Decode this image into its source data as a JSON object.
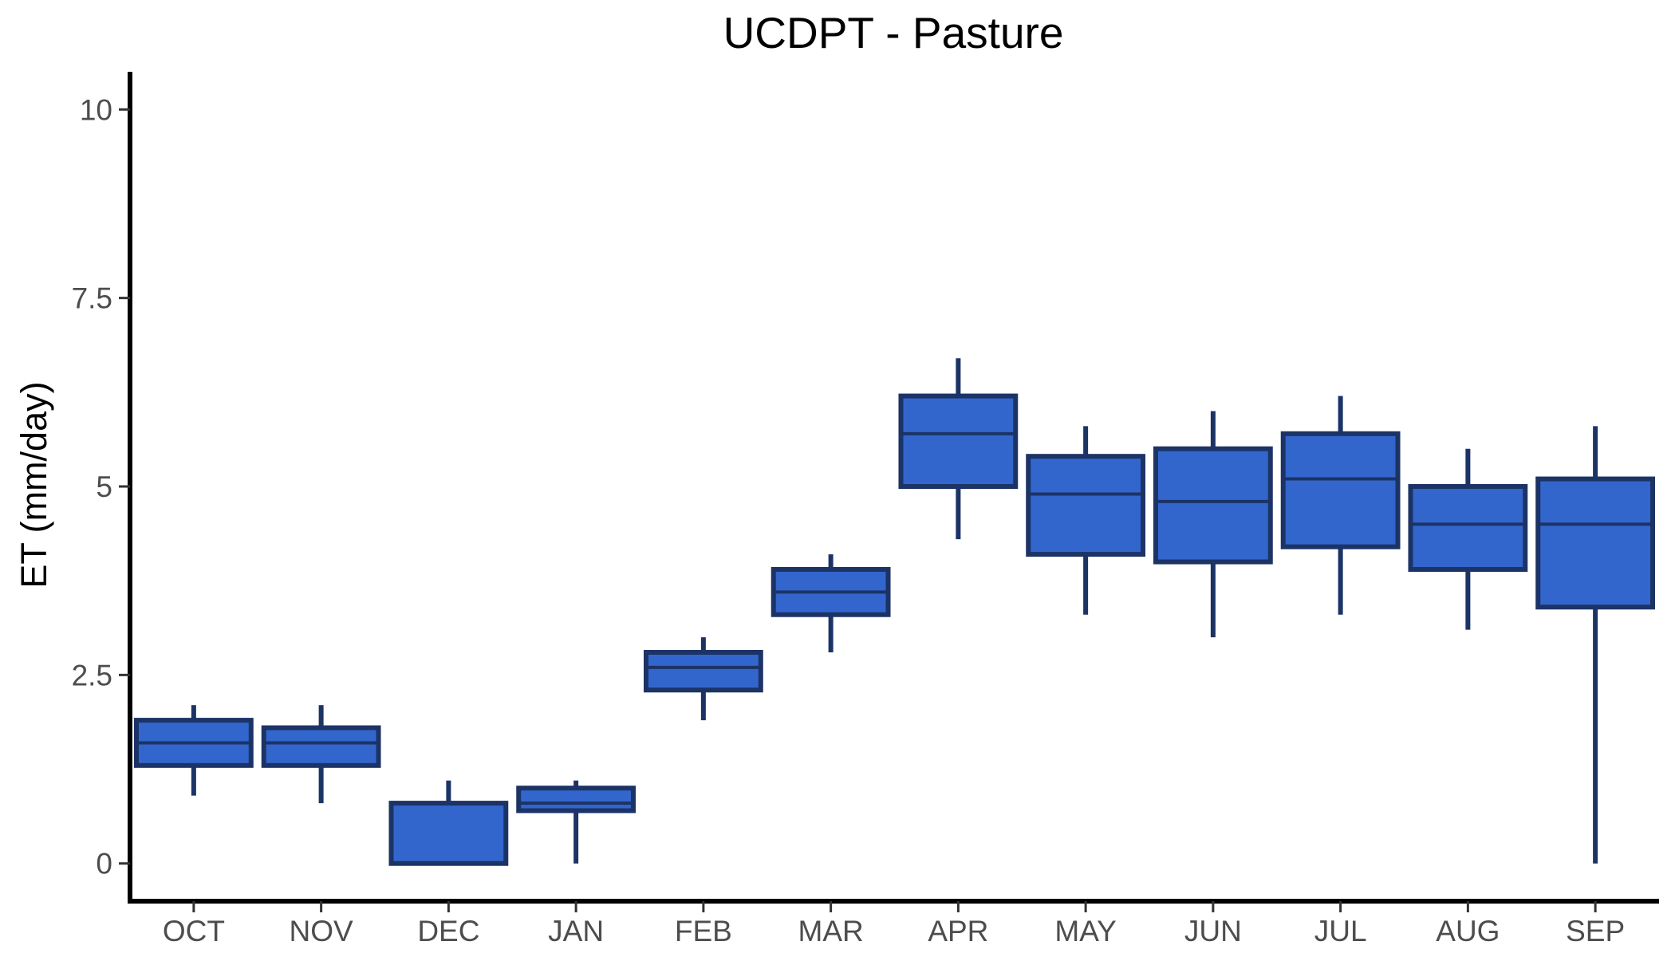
{
  "chart_data": {
    "type": "boxplot",
    "title": "UCDPT - Pasture",
    "xlabel": "",
    "ylabel": "ET (mm/day)",
    "ylim": [
      -0.5,
      10.5
    ],
    "yticks": [
      0,
      2.5,
      5,
      7.5,
      10
    ],
    "ytick_labels": [
      "0",
      "2.5",
      "5",
      "7.5",
      "10"
    ],
    "grid": false,
    "legend": "none",
    "colors": {
      "box_fill": "#3366CC",
      "box_stroke": "#1C3366",
      "axis": "#000000",
      "tick_text": "#4d4d4d"
    },
    "categories": [
      "OCT",
      "NOV",
      "DEC",
      "JAN",
      "FEB",
      "MAR",
      "APR",
      "MAY",
      "JUN",
      "JUL",
      "AUG",
      "SEP"
    ],
    "boxes": [
      {
        "category": "OCT",
        "min": 0.9,
        "q1": 1.3,
        "median": 1.6,
        "q3": 1.9,
        "max": 2.1
      },
      {
        "category": "NOV",
        "min": 0.8,
        "q1": 1.3,
        "median": 1.6,
        "q3": 1.8,
        "max": 2.1
      },
      {
        "category": "DEC",
        "min": 0.0,
        "q1": 0.0,
        "median": 0.8,
        "q3": 0.8,
        "max": 1.1
      },
      {
        "category": "JAN",
        "min": 0.0,
        "q1": 0.7,
        "median": 0.8,
        "q3": 1.0,
        "max": 1.1
      },
      {
        "category": "FEB",
        "min": 1.9,
        "q1": 2.3,
        "median": 2.6,
        "q3": 2.8,
        "max": 3.0
      },
      {
        "category": "MAR",
        "min": 2.8,
        "q1": 3.3,
        "median": 3.6,
        "q3": 3.9,
        "max": 4.1
      },
      {
        "category": "APR",
        "min": 4.3,
        "q1": 5.0,
        "median": 5.7,
        "q3": 6.2,
        "max": 6.7
      },
      {
        "category": "MAY",
        "min": 3.3,
        "q1": 4.1,
        "median": 4.9,
        "q3": 5.4,
        "max": 5.8
      },
      {
        "category": "JUN",
        "min": 3.0,
        "q1": 4.0,
        "median": 4.8,
        "q3": 5.5,
        "max": 6.0
      },
      {
        "category": "JUL",
        "min": 3.3,
        "q1": 4.2,
        "median": 5.1,
        "q3": 5.7,
        "max": 6.2
      },
      {
        "category": "AUG",
        "min": 3.1,
        "q1": 3.9,
        "median": 4.5,
        "q3": 5.0,
        "max": 5.5
      },
      {
        "category": "SEP",
        "min": 0.0,
        "q1": 3.4,
        "median": 4.5,
        "q3": 5.1,
        "max": 5.8
      }
    ]
  }
}
